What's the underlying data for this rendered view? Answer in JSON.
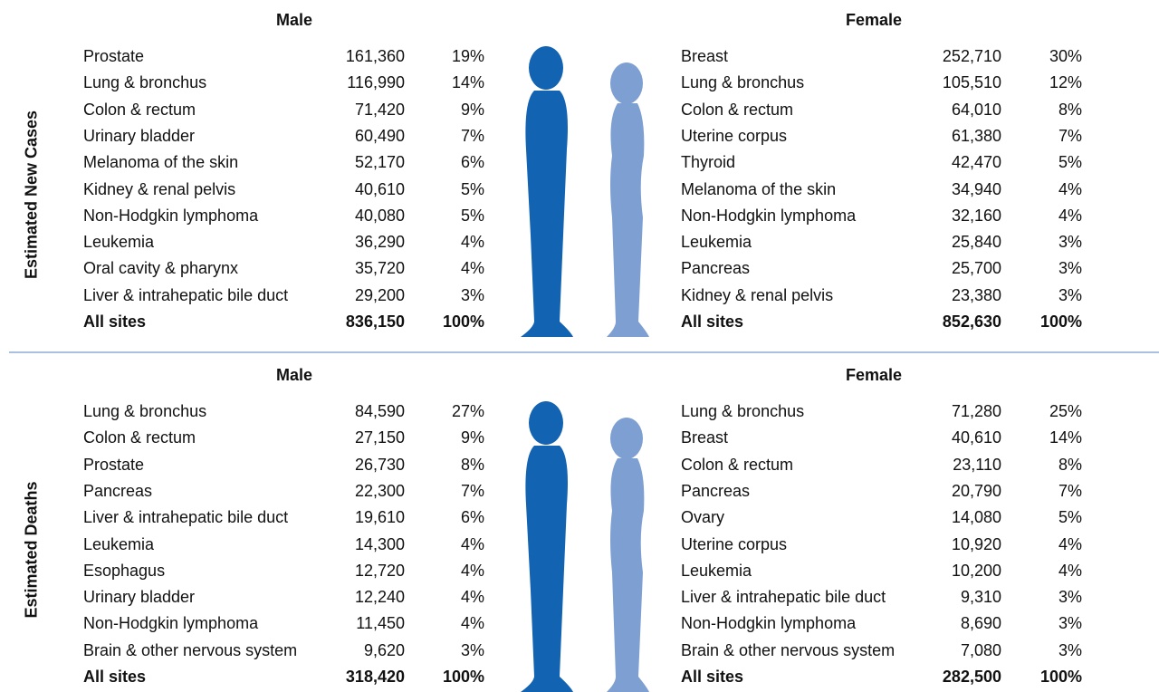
{
  "sections": [
    {
      "label": "Estimated New Cases",
      "male": {
        "title": "Male",
        "rows": [
          [
            "Prostate",
            "161,360",
            "19%"
          ],
          [
            "Lung & bronchus",
            "116,990",
            "14%"
          ],
          [
            "Colon & rectum",
            "71,420",
            "9%"
          ],
          [
            "Urinary bladder",
            "60,490",
            "7%"
          ],
          [
            "Melanoma of the skin",
            "52,170",
            "6%"
          ],
          [
            "Kidney & renal pelvis",
            "40,610",
            "5%"
          ],
          [
            "Non-Hodgkin lymphoma",
            "40,080",
            "5%"
          ],
          [
            "Leukemia",
            "36,290",
            "4%"
          ],
          [
            "Oral cavity & pharynx",
            "35,720",
            "4%"
          ],
          [
            "Liver & intrahepatic bile duct",
            "29,200",
            "3%"
          ]
        ],
        "total": [
          "All sites",
          "836,150",
          "100%"
        ]
      },
      "female": {
        "title": "Female",
        "rows": [
          [
            "Breast",
            "252,710",
            "30%"
          ],
          [
            "Lung & bronchus",
            "105,510",
            "12%"
          ],
          [
            "Colon & rectum",
            "64,010",
            "8%"
          ],
          [
            "Uterine corpus",
            "61,380",
            "7%"
          ],
          [
            "Thyroid",
            "42,470",
            "5%"
          ],
          [
            "Melanoma of the skin",
            "34,940",
            "4%"
          ],
          [
            "Non-Hodgkin lymphoma",
            "32,160",
            "4%"
          ],
          [
            "Leukemia",
            "25,840",
            "3%"
          ],
          [
            "Pancreas",
            "25,700",
            "3%"
          ],
          [
            "Kidney & renal pelvis",
            "23,380",
            "3%"
          ]
        ],
        "total": [
          "All sites",
          "852,630",
          "100%"
        ]
      }
    },
    {
      "label": "Estimated Deaths",
      "male": {
        "title": "Male",
        "rows": [
          [
            "Lung & bronchus",
            "84,590",
            "27%"
          ],
          [
            "Colon & rectum",
            "27,150",
            "9%"
          ],
          [
            "Prostate",
            "26,730",
            "8%"
          ],
          [
            "Pancreas",
            "22,300",
            "7%"
          ],
          [
            "Liver & intrahepatic bile duct",
            "19,610",
            "6%"
          ],
          [
            "Leukemia",
            "14,300",
            "4%"
          ],
          [
            "Esophagus",
            "12,720",
            "4%"
          ],
          [
            "Urinary bladder",
            "12,240",
            "4%"
          ],
          [
            "Non-Hodgkin lymphoma",
            "11,450",
            "4%"
          ],
          [
            "Brain & other nervous system",
            "9,620",
            "3%"
          ]
        ],
        "total": [
          "All sites",
          "318,420",
          "100%"
        ]
      },
      "female": {
        "title": "Female",
        "rows": [
          [
            "Lung & bronchus",
            "71,280",
            "25%"
          ],
          [
            "Breast",
            "40,610",
            "14%"
          ],
          [
            "Colon & rectum",
            "23,110",
            "8%"
          ],
          [
            "Pancreas",
            "20,790",
            "7%"
          ],
          [
            "Ovary",
            "14,080",
            "5%"
          ],
          [
            "Uterine corpus",
            "10,920",
            "4%"
          ],
          [
            "Leukemia",
            "10,200",
            "4%"
          ],
          [
            "Liver & intrahepatic bile duct",
            "9,310",
            "3%"
          ],
          [
            "Non-Hodgkin lymphoma",
            "8,690",
            "3%"
          ],
          [
            "Brain & other nervous system",
            "7,080",
            "3%"
          ]
        ],
        "total": [
          "All sites",
          "282,500",
          "100%"
        ]
      }
    }
  ]
}
